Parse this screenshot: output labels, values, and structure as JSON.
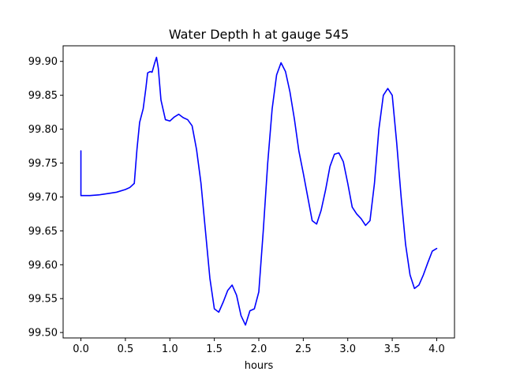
{
  "chart_data": {
    "type": "line",
    "title": "Water Depth h at gauge 545",
    "xlabel": "hours",
    "ylabel": "",
    "xlim": [
      -0.2,
      4.2
    ],
    "ylim": [
      99.492,
      99.923
    ],
    "xticks": [
      0.0,
      0.5,
      1.0,
      1.5,
      2.0,
      2.5,
      3.0,
      3.5,
      4.0
    ],
    "xtick_labels": [
      "0.0",
      "0.5",
      "1.0",
      "1.5",
      "2.0",
      "2.5",
      "3.0",
      "3.5",
      "4.0"
    ],
    "yticks": [
      99.5,
      99.55,
      99.6,
      99.65,
      99.7,
      99.75,
      99.8,
      99.85,
      99.9
    ],
    "ytick_labels": [
      "99.50",
      "99.55",
      "99.60",
      "99.65",
      "99.70",
      "99.75",
      "99.80",
      "99.85",
      "99.90"
    ],
    "grid": false,
    "series": [
      {
        "color": "#0000ff",
        "x": [
          0.0,
          0.0,
          0.1,
          0.2,
          0.3,
          0.4,
          0.5,
          0.55,
          0.6,
          0.63,
          0.66,
          0.7,
          0.73,
          0.75,
          0.78,
          0.8,
          0.83,
          0.85,
          0.87,
          0.9,
          0.95,
          1.0,
          1.05,
          1.1,
          1.15,
          1.2,
          1.25,
          1.3,
          1.35,
          1.4,
          1.45,
          1.5,
          1.55,
          1.6,
          1.65,
          1.7,
          1.75,
          1.8,
          1.85,
          1.9,
          1.95,
          2.0,
          2.05,
          2.1,
          2.15,
          2.2,
          2.25,
          2.3,
          2.35,
          2.4,
          2.45,
          2.5,
          2.55,
          2.6,
          2.65,
          2.7,
          2.75,
          2.8,
          2.85,
          2.9,
          2.95,
          3.0,
          3.05,
          3.1,
          3.15,
          3.2,
          3.25,
          3.3,
          3.35,
          3.4,
          3.45,
          3.5,
          3.55,
          3.6,
          3.65,
          3.7,
          3.75,
          3.8,
          3.85,
          3.9,
          3.95,
          4.0
        ],
        "y": [
          99.768,
          99.702,
          99.702,
          99.703,
          99.705,
          99.707,
          99.711,
          99.714,
          99.72,
          99.77,
          99.81,
          99.83,
          99.86,
          99.883,
          99.885,
          99.884,
          99.898,
          99.906,
          99.89,
          99.843,
          99.814,
          99.812,
          99.818,
          99.822,
          99.817,
          99.814,
          99.805,
          99.77,
          99.72,
          99.65,
          99.58,
          99.535,
          99.53,
          99.545,
          99.562,
          99.57,
          99.555,
          99.525,
          99.511,
          99.532,
          99.535,
          99.56,
          99.65,
          99.75,
          99.83,
          99.88,
          99.898,
          99.885,
          99.855,
          99.815,
          99.768,
          99.735,
          99.7,
          99.665,
          99.66,
          99.68,
          99.71,
          99.745,
          99.763,
          99.765,
          99.752,
          99.72,
          99.685,
          99.675,
          99.668,
          99.658,
          99.665,
          99.72,
          99.8,
          99.85,
          99.86,
          99.85,
          99.78,
          99.7,
          99.63,
          99.585,
          99.565,
          99.57,
          99.585,
          99.603,
          99.62,
          99.624
        ]
      }
    ]
  }
}
